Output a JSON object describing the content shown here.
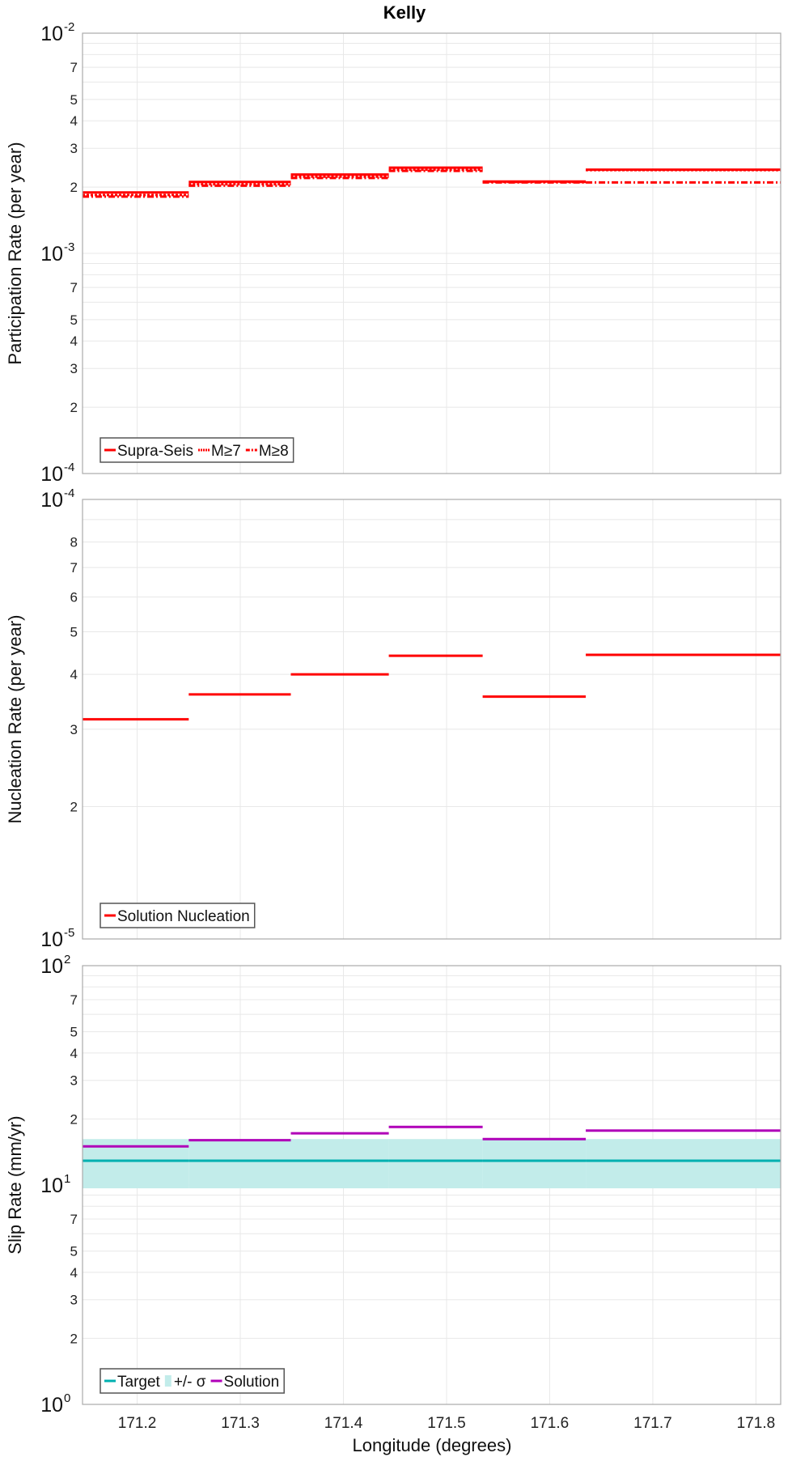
{
  "title": "Kelly",
  "xlabel": "Longitude (degrees)",
  "chart_data": [
    {
      "type": "line",
      "title": "Kelly",
      "ylabel": "Participation Rate (per year)",
      "yscale": "log",
      "ylim": [
        0.0001,
        0.01
      ],
      "xlim": [
        171.147,
        171.824
      ],
      "x_ticks": [
        "171.2",
        "171.3",
        "171.4",
        "171.5",
        "171.6",
        "171.7",
        "171.8"
      ],
      "y_major_ticks": [
        {
          "base": "10",
          "exp": "-4",
          "value": 0.0001
        },
        {
          "base": "10",
          "exp": "-3",
          "value": 0.001
        },
        {
          "base": "10",
          "exp": "-2",
          "value": 0.01
        }
      ],
      "y_minor_labels": [
        "2",
        "3",
        "4",
        "5",
        "7"
      ],
      "x_edges": [
        171.147,
        171.25,
        171.349,
        171.444,
        171.535,
        171.635,
        171.824
      ],
      "series": [
        {
          "name": "Supra-Seis",
          "style": "solid",
          "color": "#ff0000",
          "values": [
            0.00189,
            0.00211,
            0.00228,
            0.00245,
            0.00212,
            0.0024
          ]
        },
        {
          "name": "M≥7",
          "style": "dotted",
          "color": "#ff0000",
          "values": [
            0.00184,
            0.00206,
            0.00223,
            0.0024,
            0.00211,
            0.00239
          ]
        },
        {
          "name": "M≥8",
          "style": "dashdot",
          "color": "#ff0000",
          "values": [
            0.00181,
            0.00203,
            0.0022,
            0.00237,
            0.0021,
            0.0021
          ]
        }
      ],
      "legend_position": "bottom-left",
      "grid": true
    },
    {
      "type": "line",
      "ylabel": "Nucleation Rate (per year)",
      "yscale": "log",
      "ylim": [
        1e-05,
        0.0001
      ],
      "xlim": [
        171.147,
        171.824
      ],
      "y_major_ticks": [
        {
          "base": "10",
          "exp": "-5",
          "value": 1e-05
        },
        {
          "base": "10",
          "exp": "-4",
          "value": 0.0001
        }
      ],
      "y_minor_labels": [
        "2",
        "3",
        "4",
        "5",
        "6",
        "7",
        "8"
      ],
      "x_edges": [
        171.147,
        171.25,
        171.349,
        171.444,
        171.535,
        171.635,
        171.824
      ],
      "series": [
        {
          "name": "Solution Nucleation",
          "style": "solid",
          "color": "#ff0000",
          "values": [
            3.16e-05,
            3.6e-05,
            4e-05,
            4.41e-05,
            3.56e-05,
            4.43e-05
          ]
        }
      ],
      "legend_position": "bottom-left",
      "grid": true
    },
    {
      "type": "line",
      "ylabel": "Slip Rate (mm/yr)",
      "yscale": "log",
      "ylim": [
        1,
        100
      ],
      "xlim": [
        171.147,
        171.824
      ],
      "y_major_ticks": [
        {
          "base": "10",
          "exp": "0",
          "value": 1
        },
        {
          "base": "10",
          "exp": "1",
          "value": 10
        },
        {
          "base": "10",
          "exp": "2",
          "value": 100
        }
      ],
      "y_minor_labels": [
        "2",
        "3",
        "4",
        "5",
        "7"
      ],
      "x_edges": [
        171.147,
        171.25,
        171.349,
        171.444,
        171.535,
        171.635,
        171.824
      ],
      "series": [
        {
          "name": "Target",
          "style": "solid",
          "color": "#00b0b0",
          "values": [
            12.9,
            12.9,
            12.9,
            12.9,
            12.9,
            12.9
          ]
        },
        {
          "name": "+/- σ",
          "style": "band",
          "color": "#c2ecea",
          "lower": [
            9.66,
            9.66,
            9.66,
            9.66,
            9.66,
            9.66
          ],
          "upper": [
            16.2,
            16.2,
            16.2,
            16.2,
            16.2,
            16.2
          ]
        },
        {
          "name": "Solution",
          "style": "solid",
          "color": "#b000b8",
          "values": [
            15.0,
            16.0,
            17.2,
            18.4,
            16.2,
            17.7
          ]
        }
      ],
      "legend_position": "bottom-left",
      "grid": true
    }
  ]
}
